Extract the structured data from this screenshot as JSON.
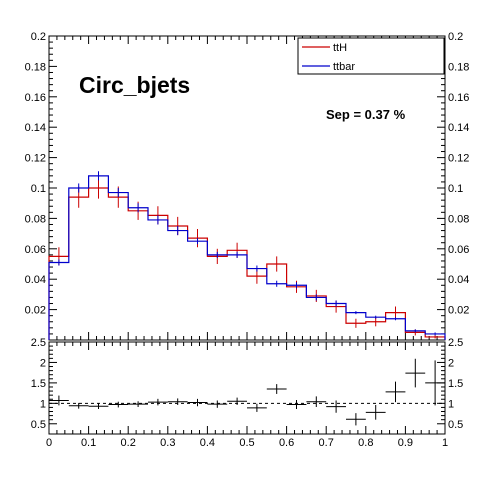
{
  "chart_data": [
    {
      "type": "histogram",
      "title": "Circ_bjets",
      "annotation": "Sep = 0.37 %",
      "xlim": [
        0,
        1
      ],
      "ylim": [
        0,
        0.2
      ],
      "y_ticks": [
        "0.02",
        "0.04",
        "0.06",
        "0.08",
        "0.1",
        "0.12",
        "0.14",
        "0.16",
        "0.18",
        "0.2"
      ],
      "y_tick_values": [
        0.02,
        0.04,
        0.06,
        0.08,
        0.1,
        0.12,
        0.14,
        0.16,
        0.18,
        0.2
      ],
      "bin_edges": [
        0,
        0.05,
        0.1,
        0.15,
        0.2,
        0.25,
        0.3,
        0.35,
        0.4,
        0.45,
        0.5,
        0.55,
        0.6,
        0.65,
        0.7,
        0.75,
        0.8,
        0.85,
        0.9,
        0.95,
        1.0
      ],
      "legend": {
        "position": "top-right",
        "entries": [
          "ttH",
          "ttbar"
        ]
      },
      "series": [
        {
          "name": "ttH",
          "color": "#cc0000",
          "values": [
            0.055,
            0.094,
            0.1,
            0.094,
            0.085,
            0.082,
            0.075,
            0.067,
            0.055,
            0.059,
            0.042,
            0.05,
            0.035,
            0.029,
            0.022,
            0.011,
            0.012,
            0.018,
            0.005,
            0.002
          ],
          "errors": [
            0.006,
            0.007,
            0.007,
            0.007,
            0.006,
            0.006,
            0.006,
            0.006,
            0.005,
            0.005,
            0.005,
            0.005,
            0.004,
            0.004,
            0.004,
            0.003,
            0.003,
            0.004,
            0.002,
            0.001
          ]
        },
        {
          "name": "ttbar",
          "color": "#0000cc",
          "values": [
            0.051,
            0.1,
            0.108,
            0.097,
            0.087,
            0.079,
            0.072,
            0.065,
            0.056,
            0.056,
            0.047,
            0.037,
            0.036,
            0.028,
            0.024,
            0.018,
            0.015,
            0.014,
            0.006,
            0.004
          ],
          "errors": [
            0.002,
            0.003,
            0.003,
            0.003,
            0.003,
            0.003,
            0.003,
            0.002,
            0.002,
            0.002,
            0.002,
            0.002,
            0.002,
            0.002,
            0.002,
            0.001,
            0.001,
            0.001,
            0.001,
            0.001
          ]
        }
      ]
    },
    {
      "type": "scatter",
      "title": "",
      "xlim": [
        0,
        1
      ],
      "ylim": [
        0.25,
        2.5
      ],
      "x_ticks": [
        "0",
        "0.1",
        "0.2",
        "0.3",
        "0.4",
        "0.5",
        "0.6",
        "0.7",
        "0.8",
        "0.9",
        "1"
      ],
      "x_tick_values": [
        0,
        0.1,
        0.2,
        0.3,
        0.4,
        0.5,
        0.6,
        0.7,
        0.8,
        0.9,
        1.0
      ],
      "y_ticks": [
        "0.5",
        "1",
        "1.5",
        "2",
        "2.5"
      ],
      "y_tick_values": [
        0.5,
        1,
        1.5,
        2,
        2.5
      ],
      "reference_line": 1,
      "x": [
        0.025,
        0.075,
        0.125,
        0.175,
        0.225,
        0.275,
        0.325,
        0.375,
        0.425,
        0.475,
        0.525,
        0.575,
        0.625,
        0.675,
        0.725,
        0.775,
        0.825,
        0.875,
        0.925,
        0.975
      ],
      "values": [
        1.07,
        0.94,
        0.93,
        0.97,
        0.98,
        1.03,
        1.04,
        1.02,
        0.98,
        1.05,
        0.89,
        1.35,
        0.97,
        1.04,
        0.92,
        0.61,
        0.78,
        1.28,
        1.74,
        1.5
      ],
      "errors": [
        0.12,
        0.07,
        0.07,
        0.07,
        0.07,
        0.08,
        0.08,
        0.09,
        0.09,
        0.09,
        0.1,
        0.12,
        0.11,
        0.13,
        0.15,
        0.15,
        0.18,
        0.25,
        0.35,
        0.55
      ]
    }
  ]
}
